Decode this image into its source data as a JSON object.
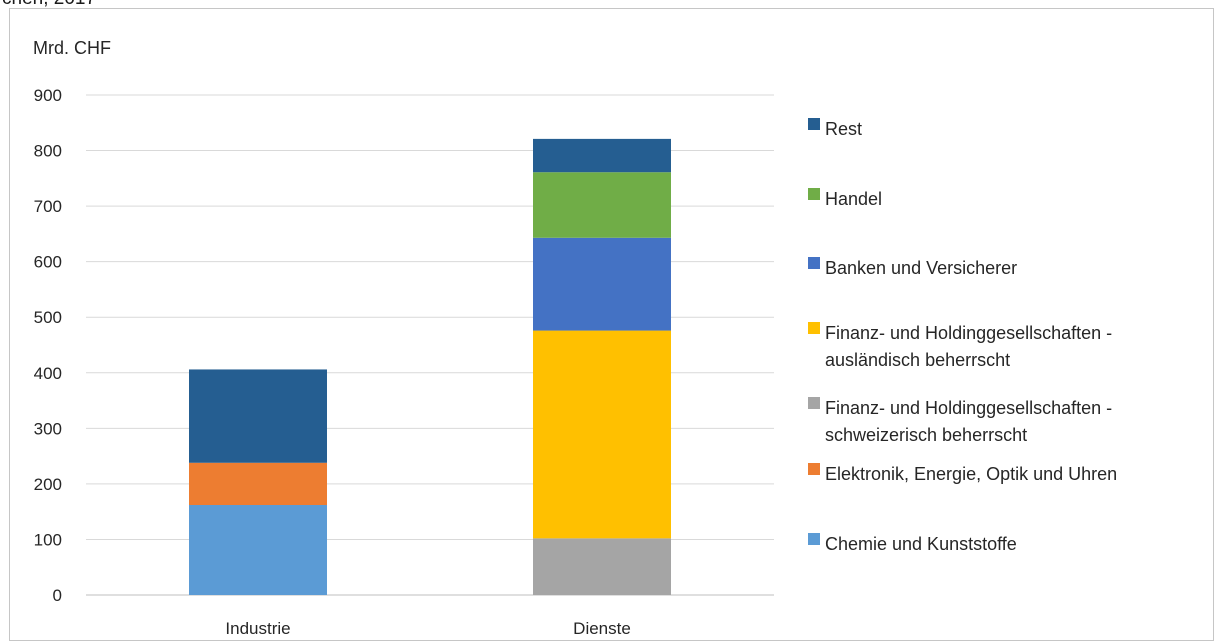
{
  "header": {
    "title_fragment": "chen, 2017"
  },
  "chart_data": {
    "type": "bar",
    "stacked": true,
    "title": "",
    "unit_label": "Mrd. CHF",
    "categories": [
      "Industrie",
      "Dienste"
    ],
    "ylim": [
      0,
      900
    ],
    "yticks": [
      0,
      100,
      200,
      300,
      400,
      500,
      600,
      700,
      800,
      900
    ],
    "grid": true,
    "legend_position": "right",
    "series": [
      {
        "name": "Chemie und Kunststoffe",
        "color": "#5B9BD5",
        "values": [
          162,
          0
        ]
      },
      {
        "name": "Elektronik, Energie, Optik und Uhren",
        "color": "#ED7D31",
        "values": [
          76,
          0
        ]
      },
      {
        "name": "Finanz- und Holdinggesellschaften - schweizerisch beherrscht",
        "legend_lines": [
          "Finanz- und Holdinggesellschaften -",
          "schweizerisch beherrscht"
        ],
        "color": "#A5A5A5",
        "values": [
          0,
          102
        ]
      },
      {
        "name": "Finanz- und Holdinggesellschaften - ausländisch beherrscht",
        "legend_lines": [
          "Finanz- und Holdinggesellschaften -",
          "ausländisch beherrscht"
        ],
        "color": "#FFC000",
        "values": [
          0,
          374
        ]
      },
      {
        "name": "Banken und Versicherer",
        "color": "#4472C4",
        "values": [
          0,
          167
        ]
      },
      {
        "name": "Handel",
        "color": "#70AD47",
        "values": [
          0,
          118
        ]
      },
      {
        "name": "Rest",
        "color": "#255E91",
        "values": [
          168,
          60
        ]
      }
    ]
  }
}
